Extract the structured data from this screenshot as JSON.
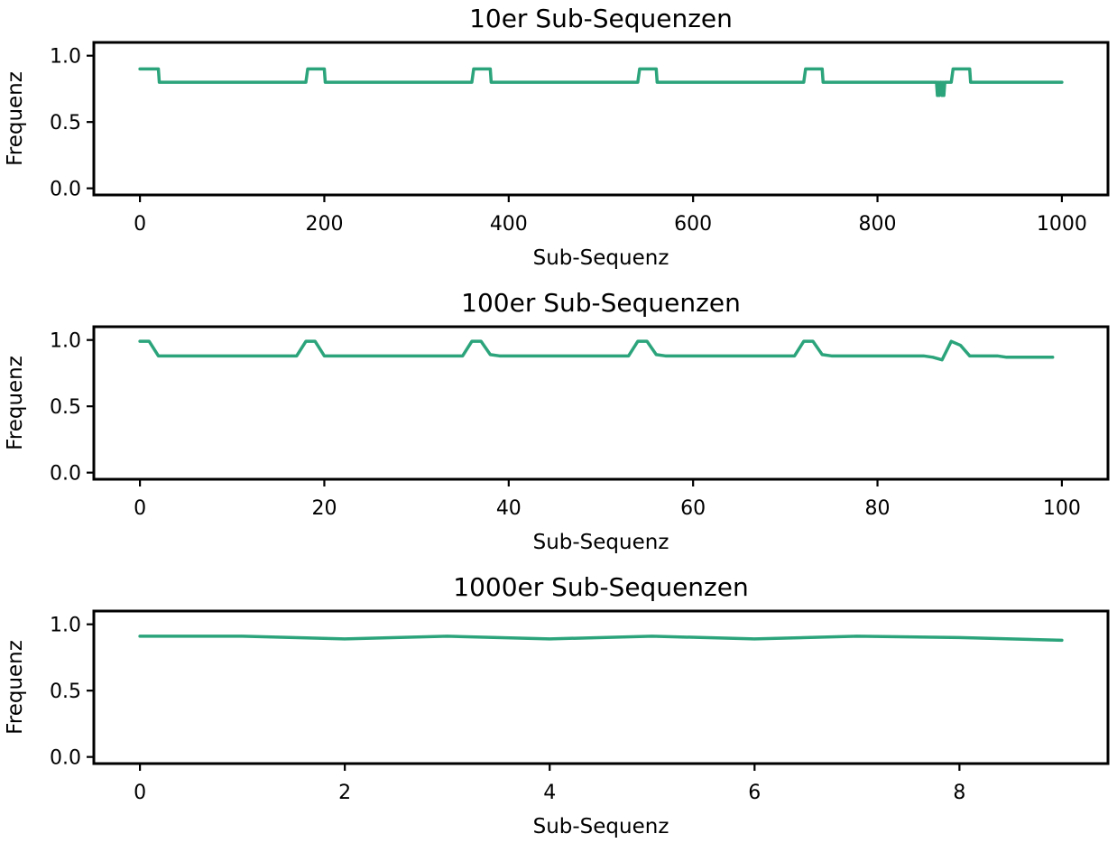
{
  "chart_data": [
    {
      "type": "line",
      "title": "10er Sub-Sequenzen",
      "xlabel": "Sub-Sequenz",
      "ylabel": "Frequenz",
      "xlim": [
        -50,
        1050
      ],
      "ylim": [
        -0.05,
        1.1
      ],
      "xticks": [
        0,
        200,
        400,
        600,
        800,
        1000
      ],
      "xtick_labels": [
        "0",
        "200",
        "400",
        "600",
        "800",
        "1000"
      ],
      "yticks": [
        0.0,
        0.5,
        1.0
      ],
      "ytick_labels": [
        "0.0",
        "0.5",
        "1.0"
      ],
      "color": "#2ca47b",
      "grid": false,
      "series": [
        {
          "x": [
            0,
            20,
            21,
            180,
            182,
            200,
            201,
            360,
            362,
            380,
            381,
            540,
            542,
            560,
            561,
            720,
            722,
            740,
            741,
            864,
            865,
            866,
            867,
            868,
            869,
            870,
            871,
            872,
            873,
            880,
            882,
            900,
            901,
            1000
          ],
          "y": [
            0.9,
            0.9,
            0.8,
            0.8,
            0.9,
            0.9,
            0.8,
            0.8,
            0.9,
            0.9,
            0.8,
            0.8,
            0.9,
            0.9,
            0.8,
            0.8,
            0.9,
            0.9,
            0.8,
            0.8,
            0.7,
            0.8,
            0.7,
            0.8,
            0.8,
            0.7,
            0.8,
            0.7,
            0.8,
            0.8,
            0.9,
            0.9,
            0.8,
            0.8
          ]
        }
      ]
    },
    {
      "type": "line",
      "title": "100er Sub-Sequenzen",
      "xlabel": "Sub-Sequenz",
      "ylabel": "Frequenz",
      "xlim": [
        -5,
        105
      ],
      "ylim": [
        -0.05,
        1.1
      ],
      "xticks": [
        0,
        20,
        40,
        60,
        80,
        100
      ],
      "xtick_labels": [
        "0",
        "20",
        "40",
        "60",
        "80",
        "100"
      ],
      "yticks": [
        0.0,
        0.5,
        1.0
      ],
      "ytick_labels": [
        "0.0",
        "0.5",
        "1.0"
      ],
      "color": "#2ca47b",
      "grid": false,
      "series": [
        {
          "x": [
            0,
            1,
            2,
            17,
            18,
            19,
            20,
            35,
            36,
            37,
            38,
            39,
            53,
            54,
            55,
            56,
            57,
            71,
            72,
            73,
            74,
            75,
            85,
            86,
            87,
            88,
            89,
            90,
            93,
            94,
            99
          ],
          "y": [
            0.99,
            0.99,
            0.88,
            0.88,
            0.99,
            0.99,
            0.88,
            0.88,
            0.99,
            0.99,
            0.89,
            0.88,
            0.88,
            0.99,
            0.99,
            0.89,
            0.88,
            0.88,
            0.99,
            0.99,
            0.89,
            0.88,
            0.88,
            0.87,
            0.85,
            0.99,
            0.96,
            0.88,
            0.88,
            0.87,
            0.87
          ]
        }
      ]
    },
    {
      "type": "line",
      "title": "1000er Sub-Sequenzen",
      "xlabel": "Sub-Sequenz",
      "ylabel": "Frequenz",
      "xlim": [
        -0.45,
        9.45
      ],
      "ylim": [
        -0.05,
        1.1
      ],
      "xticks": [
        0,
        2,
        4,
        6,
        8
      ],
      "xtick_labels": [
        "0",
        "2",
        "4",
        "6",
        "8"
      ],
      "yticks": [
        0.0,
        0.5,
        1.0
      ],
      "ytick_labels": [
        "0.0",
        "0.5",
        "1.0"
      ],
      "color": "#2ca47b",
      "grid": false,
      "series": [
        {
          "x": [
            0,
            1,
            2,
            3,
            4,
            5,
            6,
            7,
            8,
            9
          ],
          "y": [
            0.91,
            0.91,
            0.89,
            0.91,
            0.89,
            0.91,
            0.89,
            0.91,
            0.9,
            0.88
          ]
        }
      ]
    }
  ]
}
